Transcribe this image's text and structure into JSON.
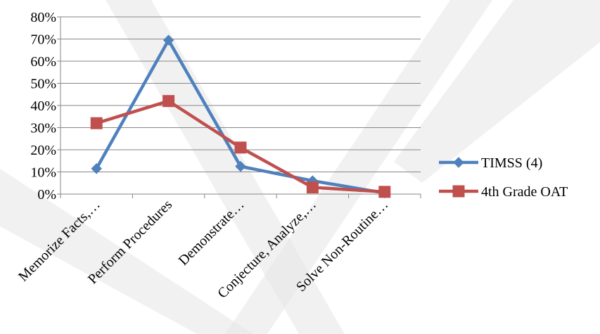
{
  "chart_data": {
    "type": "line",
    "categories": [
      "Memorize Facts,…",
      "Perform Procedures",
      "Demonstrate…",
      "Conjecture, Analyze,…",
      "Solve Non-Routine…"
    ],
    "y_tick_labels": [
      "0%",
      "10%",
      "20%",
      "30%",
      "40%",
      "50%",
      "60%",
      "70%",
      "80%"
    ],
    "ylim": [
      0,
      80
    ],
    "y_unit": "%",
    "grid": true,
    "legend_position": "right",
    "series": [
      {
        "name": "TIMSS (4)",
        "color": "#4f81bd",
        "marker": "diamond",
        "values": [
          11.5,
          69.5,
          12.5,
          6,
          0.5
        ]
      },
      {
        "name": "4th Grade OAT",
        "color": "#c0504d",
        "marker": "square",
        "values": [
          32,
          42,
          21,
          3,
          1
        ]
      }
    ]
  },
  "watermark": {
    "color": "#e6e6e6"
  }
}
